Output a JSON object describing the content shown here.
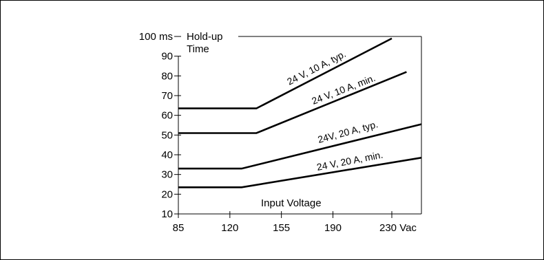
{
  "chart_data": {
    "type": "line",
    "ylabel": "Hold-up Time",
    "ylabel_lines": [
      "Hold-up",
      "Time"
    ],
    "xlabel": "Input Voltage",
    "xlim": [
      85,
      230
    ],
    "ylim": [
      10,
      100
    ],
    "x_ticks": [
      {
        "value": 85,
        "label": "85"
      },
      {
        "value": 120,
        "label": "120"
      },
      {
        "value": 155,
        "label": "155"
      },
      {
        "value": 190,
        "label": "190"
      },
      {
        "value": 230,
        "label": "230 Vac"
      }
    ],
    "y_ticks": [
      {
        "value": 10,
        "label": "10"
      },
      {
        "value": 20,
        "label": "20"
      },
      {
        "value": 30,
        "label": "30"
      },
      {
        "value": 40,
        "label": "40"
      },
      {
        "value": 50,
        "label": "50"
      },
      {
        "value": 60,
        "label": "60"
      },
      {
        "value": 70,
        "label": "70"
      },
      {
        "value": 80,
        "label": "80"
      },
      {
        "value": 90,
        "label": "90"
      },
      {
        "value": 100,
        "label": "100 ms"
      }
    ],
    "grid": false,
    "series": [
      {
        "name": "24 V, 10 A, typ.",
        "x": [
          85,
          138,
          230
        ],
        "y": [
          63.5,
          63.5,
          99
        ]
      },
      {
        "name": "24 V, 10 A, min.",
        "x": [
          85,
          138,
          240
        ],
        "y": [
          51,
          51,
          82
        ]
      },
      {
        "name": "24V, 20 A, typ.",
        "x": [
          85,
          128,
          250
        ],
        "y": [
          33,
          33,
          55.5
        ]
      },
      {
        "name": "24 V, 20 A, min.",
        "x": [
          85,
          128,
          250
        ],
        "y": [
          23.5,
          23.5,
          38.5
        ]
      }
    ]
  }
}
